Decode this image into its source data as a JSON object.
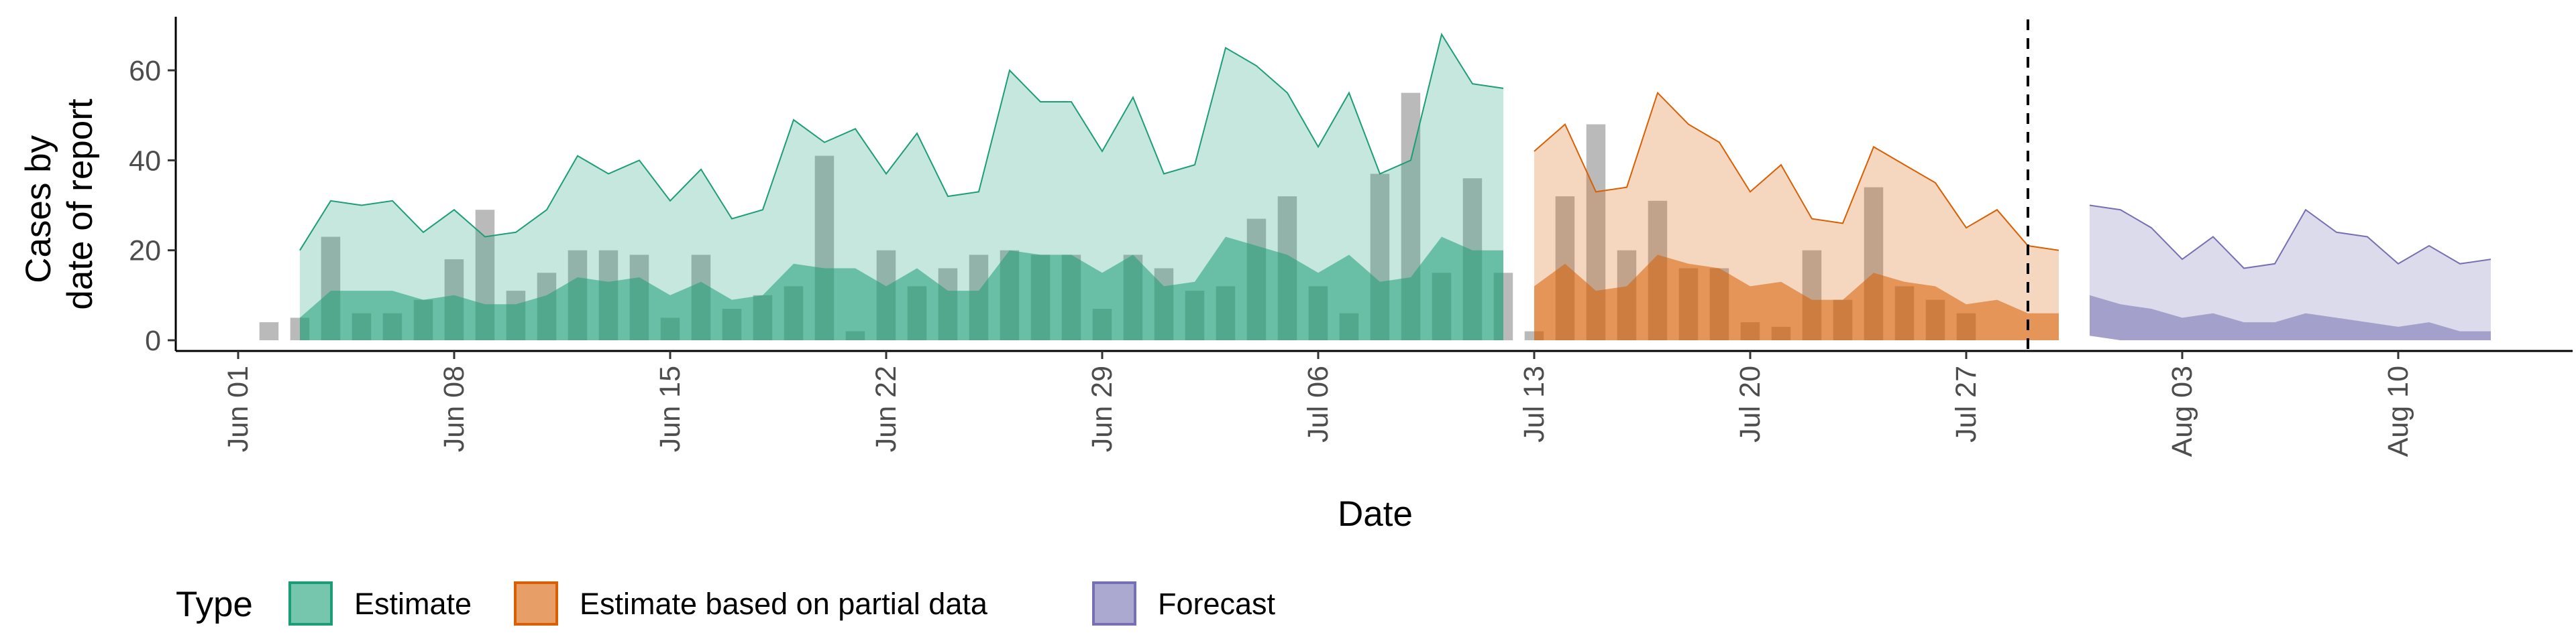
{
  "chart_data": {
    "type": "area",
    "xlabel": "Date",
    "ylabel_lines": [
      "Cases by",
      "date of report"
    ],
    "ylim": [
      -3,
      71
    ],
    "yticks": [
      0,
      20,
      40,
      60
    ],
    "x_tick_labels": [
      "Jun 01",
      "Jun 08",
      "Jun 15",
      "Jun 22",
      "Jun 29",
      "Jul 06",
      "Jul 13",
      "Jul 20",
      "Jul 27",
      "Aug 03",
      "Aug 10"
    ],
    "x_tick_days": [
      1,
      8,
      15,
      22,
      29,
      36,
      43,
      50,
      57,
      64,
      71
    ],
    "xlim_days": [
      -0.8,
      79
    ],
    "vline_day": 59,
    "legend": {
      "title": "Type",
      "position": "bottom",
      "items": [
        {
          "label": "Estimate",
          "fill": "#1b9e77",
          "stroke": "#1b9e77"
        },
        {
          "label": "Estimate based on partial data",
          "fill": "#d95f02",
          "stroke": "#d95f02"
        },
        {
          "label": "Forecast",
          "fill": "#7570b3",
          "stroke": "#7570b3"
        }
      ]
    },
    "bars": {
      "color": "#a0a0a0",
      "start_day": 2,
      "values": [
        4,
        5,
        23,
        6,
        6,
        9,
        18,
        29,
        11,
        15,
        20,
        20,
        19,
        5,
        19,
        7,
        10,
        12,
        41,
        2,
        20,
        12,
        16,
        19,
        20,
        19,
        19,
        7,
        19,
        16,
        11,
        12,
        27,
        32,
        12,
        6,
        37,
        55,
        15,
        36,
        15,
        2,
        32,
        48,
        20,
        31,
        16,
        16,
        4,
        3,
        20,
        9,
        34,
        12,
        9,
        6
      ]
    },
    "series": [
      {
        "name": "Estimate",
        "start_day": 3,
        "color": "#1b9e77",
        "upper_outer": [
          20,
          31,
          30,
          31,
          24,
          29,
          23,
          24,
          29,
          41,
          37,
          40,
          31,
          38,
          27,
          29,
          49,
          44,
          47,
          37,
          46,
          32,
          33,
          60,
          53,
          53,
          42,
          54,
          37,
          39,
          65,
          61,
          55,
          43,
          55,
          37,
          40,
          68,
          57,
          56
        ],
        "upper_inner": [
          5,
          11,
          11,
          11,
          9,
          10,
          8,
          8,
          10,
          14,
          13,
          14,
          10,
          13,
          9,
          10,
          17,
          16,
          16,
          12,
          16,
          11,
          11,
          20,
          19,
          19,
          15,
          19,
          12,
          13,
          23,
          21,
          19,
          15,
          19,
          13,
          14,
          23,
          20,
          20
        ],
        "lower_inner": [
          0,
          0,
          0,
          0,
          0,
          0,
          0,
          0,
          0,
          0,
          0,
          0,
          0,
          0,
          0,
          0,
          0,
          0,
          0,
          0,
          0,
          0,
          0,
          0,
          0,
          0,
          0,
          0,
          0,
          0,
          0,
          0,
          0,
          0,
          0,
          0,
          0,
          0,
          0,
          0
        ]
      },
      {
        "name": "Estimate based on partial data",
        "start_day": 43,
        "color": "#d95f02",
        "upper_outer": [
          42,
          48,
          33,
          34,
          55,
          48,
          44,
          33,
          39,
          27,
          26,
          43,
          39,
          35,
          25,
          29,
          21,
          20
        ],
        "upper_inner": [
          12,
          17,
          11,
          12,
          19,
          17,
          16,
          12,
          13,
          9,
          9,
          15,
          13,
          12,
          8,
          9,
          6,
          6
        ],
        "lower_inner": [
          0,
          0,
          0,
          0,
          0,
          0,
          0,
          0,
          0,
          0,
          0,
          0,
          0,
          0,
          0,
          0,
          0,
          0
        ]
      },
      {
        "name": "Forecast",
        "start_day": 61,
        "color": "#7570b3",
        "upper_outer": [
          30,
          29,
          25,
          18,
          23,
          16,
          17,
          29,
          24,
          23,
          17,
          21,
          17,
          18
        ],
        "upper_inner": [
          10,
          8,
          7,
          5,
          6,
          4,
          4,
          6,
          5,
          4,
          3,
          4,
          2,
          2
        ],
        "lower_inner": [
          1,
          0,
          0,
          0,
          0,
          0,
          0,
          0,
          0,
          0,
          0,
          0,
          0,
          0
        ]
      }
    ]
  }
}
